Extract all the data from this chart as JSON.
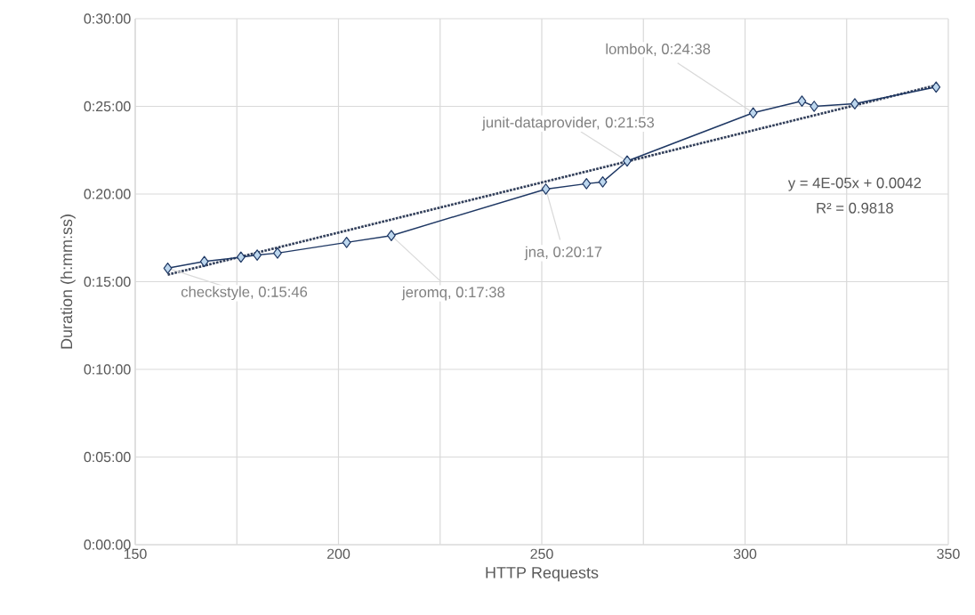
{
  "chart_data": {
    "type": "line",
    "xlabel": "HTTP Requests",
    "ylabel": "Duration (h:mm:ss)",
    "xlim": [
      150,
      350
    ],
    "xticks": [
      150,
      {
        "value": 175,
        "label": null
      },
      200,
      {
        "value": 225,
        "label": null
      },
      250,
      {
        "value": 275,
        "label": null
      },
      300,
      {
        "value": 325,
        "label": null
      },
      350
    ],
    "ylim": [
      0,
      30
    ],
    "yticks": [
      {
        "value": 0,
        "label": "0:00:00"
      },
      {
        "value": 5,
        "label": "0:05:00"
      },
      {
        "value": 10,
        "label": "0:10:00"
      },
      {
        "value": 15,
        "label": "0:15:00"
      },
      {
        "value": 20,
        "label": "0:20:00"
      },
      {
        "value": 25,
        "label": "0:25:00"
      },
      {
        "value": 30,
        "label": "0:30:00"
      }
    ],
    "grid": true,
    "marker": "diamond",
    "line_style": "solid",
    "series": [
      {
        "color": "#1f3864",
        "x": [
          158,
          167,
          176,
          180,
          185,
          202,
          213,
          251,
          261,
          265,
          271,
          302,
          314,
          317,
          327,
          347
        ],
        "values": [
          15.77,
          16.15,
          16.4,
          16.52,
          16.63,
          17.24,
          17.63,
          20.28,
          20.59,
          20.69,
          21.88,
          24.63,
          25.3,
          25.0,
          25.15,
          26.1
        ]
      },
      {
        "type": "line",
        "color": "#323f5a",
        "x": [
          158,
          347
        ],
        "values": [
          15.4,
          26.2
        ],
        "line_style": "dotted",
        "marker": "none"
      }
    ],
    "annotations": [
      {
        "text": "checkstyle, 0:15:46",
        "x": 158,
        "y": 15.77
      },
      {
        "text": "jeromq, 0:17:38",
        "x": 213,
        "y": 17.63
      },
      {
        "text": "jna, 0:20:17",
        "x": 251,
        "y": 20.28
      },
      {
        "text": "junit-dataprovider, 0:21:53",
        "x": 271,
        "y": 21.88
      },
      {
        "text": "lombok, 0:24:38",
        "x": 302,
        "y": 24.63
      },
      "y = 4E-05x + 0.0042",
      "R² = 0.9818"
    ]
  }
}
